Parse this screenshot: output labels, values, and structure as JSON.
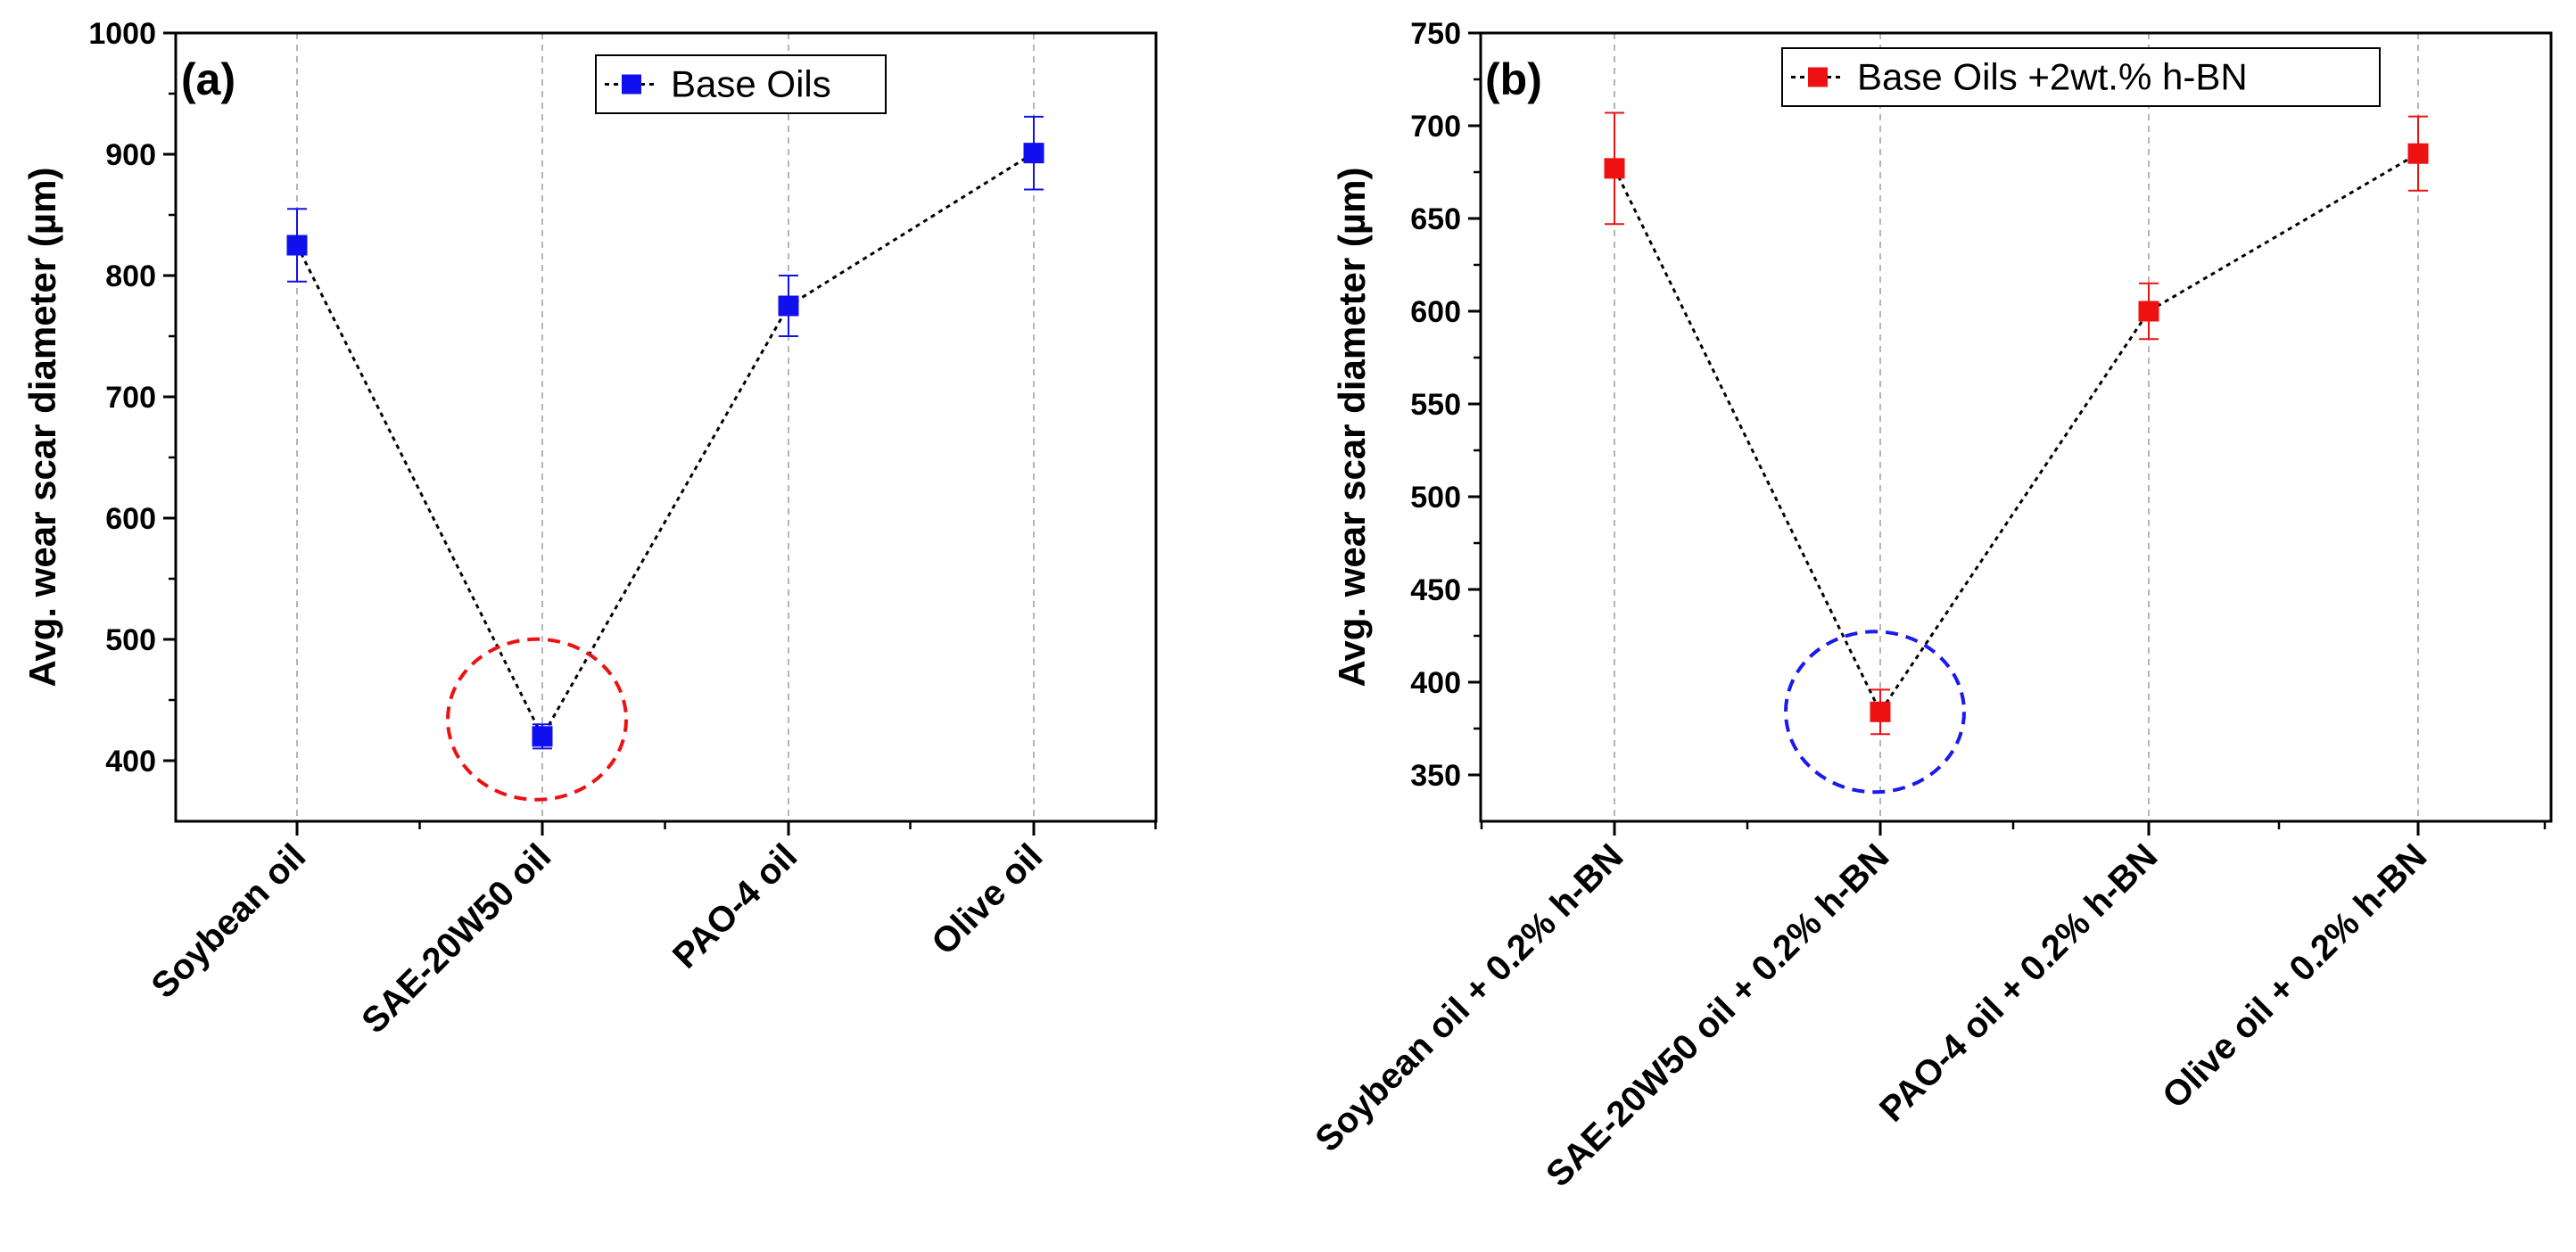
{
  "chart_data": [
    {
      "type": "line",
      "panel_label": "(a)",
      "title": "",
      "xlabel": "",
      "ylabel": "Avg. wear scar diameter (µm)",
      "ylim": [
        350,
        1000
      ],
      "yticks": [
        400,
        500,
        600,
        700,
        800,
        900,
        1000
      ],
      "grid": "vertical dashed at categories",
      "legend": {
        "label": "Base Oils",
        "placement": "top-center"
      },
      "categories": [
        "Soybean oil",
        "SAE-20W50 oil",
        "PAO-4 oil",
        "Olive oil"
      ],
      "series": [
        {
          "name": "Base Oils",
          "color": "#1010ee",
          "line_style": "dotted black",
          "marker": "square",
          "values": [
            825,
            420,
            775,
            901
          ],
          "errors": [
            30,
            10,
            25,
            30
          ]
        }
      ],
      "annotation": {
        "type": "dashed-circle",
        "color": "#ee1111",
        "category": "SAE-20W50 oil",
        "center_value": 434
      }
    },
    {
      "type": "line",
      "panel_label": "(b)",
      "title": "",
      "xlabel": "",
      "ylabel": "Avg. wear scar diameter (µm)",
      "ylim": [
        325,
        750
      ],
      "yticks": [
        350,
        400,
        450,
        500,
        550,
        600,
        650,
        700,
        750
      ],
      "grid": "vertical dashed at categories",
      "legend": {
        "label": "Base Oils +2wt.% h-BN",
        "placement": "top-center"
      },
      "categories": [
        "Soybean oil + 0.2% h-BN",
        "SAE-20W50 oil + 0.2% h-BN",
        "PAO-4 oil + 0.2% h-BN",
        "Olive oil + 0.2% h-BN"
      ],
      "series": [
        {
          "name": "Base Oils +2wt.% h-BN",
          "color": "#ee1111",
          "line_style": "dotted black",
          "marker": "square",
          "values": [
            677,
            384,
            600,
            685
          ],
          "errors": [
            30,
            12,
            15,
            20
          ]
        }
      ],
      "annotation": {
        "type": "dashed-circle",
        "color": "#1a1aee",
        "category": "SAE-20W50 oil + 0.2% h-BN",
        "center_value": 384
      }
    }
  ]
}
